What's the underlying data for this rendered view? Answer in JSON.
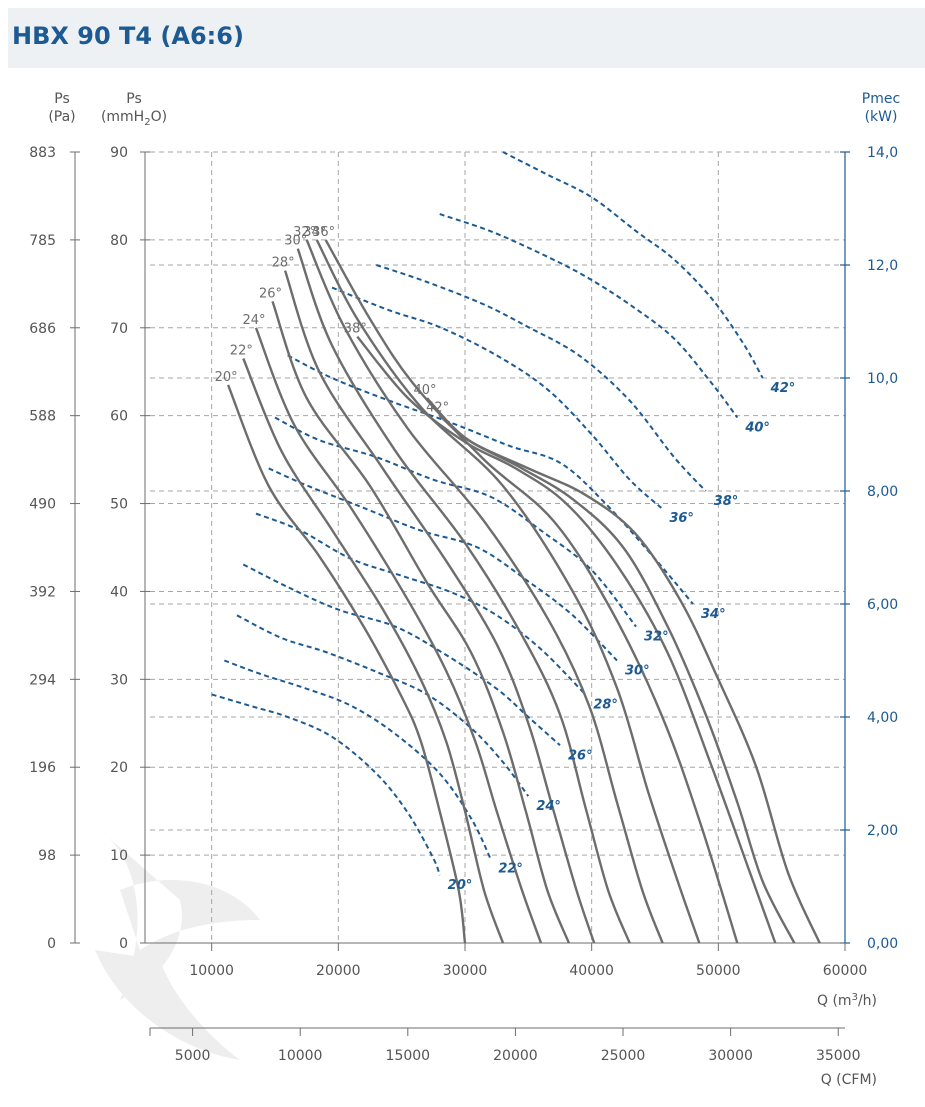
{
  "title": "HBX 90 T4 (A6:6)",
  "axes": {
    "pa_label_1": "Ps",
    "pa_label_2": "(Pa)",
    "mm_label_1": "Ps",
    "mm_label_2_a": "(mmH",
    "mm_label_2_sub": "2",
    "mm_label_2_b": "O)",
    "kw_label_1": "Pmec",
    "kw_label_2": "(kW)",
    "q_m3h_label_a": "Q (m",
    "q_m3h_label_sup": "3",
    "q_m3h_label_b": "/h)",
    "q_cfm_label": "Q (CFM)"
  },
  "chart_data": {
    "type": "line",
    "title": "HBX 90 T4 (A6:6)",
    "xlabel": "Q (m3/h)",
    "ylabel": "Ps (mmH2O)",
    "y2label": "Pmec (kW)",
    "xlim": [
      0,
      60000
    ],
    "ylim": [
      0,
      90
    ],
    "y2lim": [
      0,
      14
    ],
    "grid": true,
    "x_ticks": [
      "10000",
      "20000",
      "30000",
      "40000",
      "50000",
      "60000"
    ],
    "x_ticks_values": [
      10000,
      20000,
      30000,
      40000,
      50000,
      60000
    ],
    "y_ticks": [
      "0",
      "10",
      "20",
      "30",
      "40",
      "50",
      "60",
      "70",
      "80",
      "90"
    ],
    "y_ticks_values": [
      0,
      10,
      20,
      30,
      40,
      50,
      60,
      70,
      80,
      90
    ],
    "pa_ticks": [
      "0",
      "98",
      "196",
      "294",
      "392",
      "490",
      "588",
      "686",
      "785",
      "883"
    ],
    "kw_ticks": [
      "0,00",
      "2,00",
      "4,00",
      "6,00",
      "8,00",
      "10,0",
      "12,0",
      "14,0"
    ],
    "kw_ticks_values": [
      0,
      2,
      4,
      6,
      8,
      10,
      12,
      14
    ],
    "cfm_ticks": [
      "5000",
      "10000",
      "15000",
      "20000",
      "25000",
      "30000",
      "35000"
    ],
    "cfm_ticks_values": [
      5000,
      10000,
      15000,
      20000,
      25000,
      30000,
      35000
    ],
    "pressure_series": [
      {
        "name": "20°",
        "points": [
          [
            11300,
            63.5
          ],
          [
            14500,
            52
          ],
          [
            18500,
            44
          ],
          [
            22000,
            36
          ],
          [
            25000,
            28
          ],
          [
            26500,
            23
          ],
          [
            28000,
            15
          ],
          [
            29500,
            6
          ],
          [
            30000,
            0
          ]
        ]
      },
      {
        "name": "22°",
        "points": [
          [
            12500,
            66.5
          ],
          [
            15500,
            56
          ],
          [
            19500,
            47
          ],
          [
            23500,
            38
          ],
          [
            26500,
            30
          ],
          [
            28500,
            23
          ],
          [
            30000,
            15
          ],
          [
            31500,
            6
          ],
          [
            33000,
            0
          ]
        ]
      },
      {
        "name": "24°",
        "points": [
          [
            13500,
            70
          ],
          [
            16500,
            59
          ],
          [
            21000,
            49.5
          ],
          [
            25500,
            39
          ],
          [
            28500,
            31
          ],
          [
            30800,
            23
          ],
          [
            32500,
            15
          ],
          [
            34500,
            6
          ],
          [
            36000,
            0
          ]
        ]
      },
      {
        "name": "26°",
        "points": [
          [
            14800,
            73
          ],
          [
            17500,
            62
          ],
          [
            22500,
            52
          ],
          [
            27000,
            41
          ],
          [
            30500,
            33
          ],
          [
            33000,
            24
          ],
          [
            34800,
            15
          ],
          [
            36500,
            6
          ],
          [
            38200,
            0
          ]
        ]
      },
      {
        "name": "28°",
        "points": [
          [
            15800,
            76.5
          ],
          [
            18500,
            65
          ],
          [
            23500,
            54
          ],
          [
            28500,
            43.5
          ],
          [
            32500,
            34
          ],
          [
            35000,
            25
          ],
          [
            37000,
            15
          ],
          [
            38800,
            6
          ],
          [
            40200,
            0
          ]
        ]
      },
      {
        "name": "30°",
        "points": [
          [
            16800,
            79
          ],
          [
            19500,
            68
          ],
          [
            24500,
            56
          ],
          [
            30000,
            45.5
          ],
          [
            34500,
            35
          ],
          [
            37500,
            26
          ],
          [
            39500,
            15.5
          ],
          [
            41300,
            6
          ],
          [
            43000,
            0
          ]
        ]
      },
      {
        "name": "32°",
        "points": [
          [
            17500,
            80
          ],
          [
            20500,
            70
          ],
          [
            25500,
            58.5
          ],
          [
            31500,
            48
          ],
          [
            36500,
            37
          ],
          [
            39800,
            27
          ],
          [
            42000,
            16
          ],
          [
            44000,
            6
          ],
          [
            45600,
            0
          ]
        ]
      },
      {
        "name": "34°",
        "points": [
          [
            18300,
            80
          ],
          [
            21500,
            71
          ],
          [
            26500,
            61
          ],
          [
            33000,
            52
          ],
          [
            38500,
            40
          ],
          [
            42000,
            29
          ],
          [
            44500,
            17
          ],
          [
            46800,
            7
          ],
          [
            48500,
            0
          ]
        ]
      },
      {
        "name": "36°",
        "points": [
          [
            19000,
            80
          ],
          [
            22500,
            71
          ],
          [
            26000,
            63.5
          ],
          [
            31500,
            55
          ],
          [
            37000,
            48
          ],
          [
            41500,
            38
          ],
          [
            45500,
            26
          ],
          [
            48500,
            14
          ],
          [
            51500,
            0
          ]
        ]
      },
      {
        "name": "38°",
        "points": [
          [
            21500,
            69
          ],
          [
            25500,
            62
          ],
          [
            30000,
            57
          ],
          [
            34000,
            54
          ],
          [
            38000,
            50
          ],
          [
            42000,
            43
          ],
          [
            46000,
            33
          ],
          [
            49500,
            20
          ],
          [
            52500,
            8
          ],
          [
            54500,
            0
          ]
        ]
      },
      {
        "name": "40°",
        "points": [
          [
            27000,
            62
          ],
          [
            30000,
            57.5
          ],
          [
            34500,
            54
          ],
          [
            38500,
            50.5
          ],
          [
            42500,
            45
          ],
          [
            46000,
            36
          ],
          [
            49000,
            26
          ],
          [
            51500,
            16
          ],
          [
            53500,
            7
          ],
          [
            56000,
            0
          ]
        ]
      },
      {
        "name": "42°",
        "points": [
          [
            28000,
            60
          ],
          [
            30500,
            57
          ],
          [
            35000,
            54
          ],
          [
            39500,
            51
          ],
          [
            43500,
            46.5
          ],
          [
            47000,
            39
          ],
          [
            50000,
            30
          ],
          [
            53000,
            20
          ],
          [
            55500,
            8
          ],
          [
            58000,
            0
          ]
        ]
      }
    ],
    "power_series": [
      {
        "name": "20°",
        "points": [
          [
            10000,
            4.4
          ],
          [
            13000,
            4.2
          ],
          [
            16000,
            4.0
          ],
          [
            19500,
            3.65
          ],
          [
            23000,
            3.0
          ],
          [
            25500,
            2.3
          ],
          [
            27500,
            1.5
          ],
          [
            28000,
            1.2
          ]
        ]
      },
      {
        "name": "22°",
        "points": [
          [
            11000,
            5.0
          ],
          [
            14000,
            4.75
          ],
          [
            17500,
            4.5
          ],
          [
            21000,
            4.2
          ],
          [
            24500,
            3.7
          ],
          [
            28000,
            3.0
          ],
          [
            30500,
            2.2
          ],
          [
            32000,
            1.5
          ]
        ]
      },
      {
        "name": "24°",
        "points": [
          [
            12000,
            5.8
          ],
          [
            15500,
            5.4
          ],
          [
            19000,
            5.15
          ],
          [
            23000,
            4.8
          ],
          [
            27000,
            4.4
          ],
          [
            30500,
            3.8
          ],
          [
            33000,
            3.2
          ],
          [
            35000,
            2.6
          ]
        ]
      },
      {
        "name": "26°",
        "points": [
          [
            12500,
            6.7
          ],
          [
            16000,
            6.3
          ],
          [
            20000,
            5.9
          ],
          [
            24500,
            5.6
          ],
          [
            28500,
            5.1
          ],
          [
            32500,
            4.5
          ],
          [
            35000,
            4.0
          ],
          [
            37500,
            3.5
          ]
        ]
      },
      {
        "name": "28°",
        "points": [
          [
            13500,
            7.6
          ],
          [
            17000,
            7.3
          ],
          [
            21000,
            6.8
          ],
          [
            25000,
            6.5
          ],
          [
            29000,
            6.2
          ],
          [
            32500,
            5.8
          ],
          [
            36000,
            5.2
          ],
          [
            39500,
            4.4
          ]
        ]
      },
      {
        "name": "30°",
        "points": [
          [
            14500,
            8.4
          ],
          [
            17500,
            8.1
          ],
          [
            22000,
            7.7
          ],
          [
            26500,
            7.3
          ],
          [
            31000,
            7.0
          ],
          [
            35000,
            6.4
          ],
          [
            38500,
            5.8
          ],
          [
            42000,
            5.0
          ]
        ]
      },
      {
        "name": "32°",
        "points": [
          [
            15000,
            9.3
          ],
          [
            18500,
            8.9
          ],
          [
            23000,
            8.6
          ],
          [
            27500,
            8.2
          ],
          [
            32000,
            7.9
          ],
          [
            36000,
            7.3
          ],
          [
            40000,
            6.6
          ],
          [
            43500,
            5.6
          ]
        ]
      },
      {
        "name": "34°",
        "points": [
          [
            16000,
            10.4
          ],
          [
            19500,
            10.0
          ],
          [
            24000,
            9.6
          ],
          [
            29000,
            9.2
          ],
          [
            33500,
            8.8
          ],
          [
            37500,
            8.5
          ],
          [
            41000,
            7.8
          ],
          [
            45000,
            6.8
          ],
          [
            48000,
            6.0
          ]
        ]
      },
      {
        "name": "36°",
        "points": [
          [
            19500,
            11.6
          ],
          [
            24000,
            11.2
          ],
          [
            28000,
            10.9
          ],
          [
            32500,
            10.4
          ],
          [
            36500,
            9.8
          ],
          [
            40000,
            9.0
          ],
          [
            43000,
            8.2
          ],
          [
            45500,
            7.7
          ]
        ]
      },
      {
        "name": "38°",
        "points": [
          [
            23000,
            12.0
          ],
          [
            27000,
            11.7
          ],
          [
            31500,
            11.3
          ],
          [
            35000,
            10.9
          ],
          [
            39000,
            10.4
          ],
          [
            43000,
            9.6
          ],
          [
            46500,
            8.6
          ],
          [
            49000,
            8.0
          ]
        ]
      },
      {
        "name": "40°",
        "points": [
          [
            28000,
            12.9
          ],
          [
            32000,
            12.6
          ],
          [
            36000,
            12.2
          ],
          [
            39500,
            11.8
          ],
          [
            43000,
            11.3
          ],
          [
            46500,
            10.7
          ],
          [
            49500,
            9.9
          ],
          [
            51500,
            9.3
          ]
        ]
      },
      {
        "name": "42°",
        "points": [
          [
            33000,
            14.0
          ],
          [
            36500,
            13.6
          ],
          [
            40000,
            13.2
          ],
          [
            43500,
            12.6
          ],
          [
            46500,
            12.1
          ],
          [
            49500,
            11.4
          ],
          [
            52000,
            10.6
          ],
          [
            53500,
            10.0
          ]
        ]
      }
    ],
    "colors": {
      "pressure": "#6d6d6d",
      "power": "#1d5a92",
      "grid": "#a6a6a6",
      "axis_left": "#6d6d6d",
      "axis_right": "#1d5a92"
    },
    "watermark": "Vent"
  }
}
